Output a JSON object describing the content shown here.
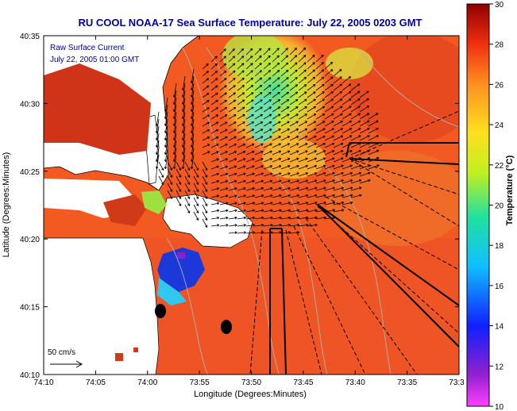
{
  "title": "RU COOL  NOAA-17  Sea Surface Temperature:  July 22, 2005 0203 GMT",
  "inset": {
    "line1": "Raw Surface Current",
    "line2": "July 22, 2005 01:00 GMT"
  },
  "scale_label": "50 cm/s",
  "xlabel": "Longitude (Degrees:Minutes)",
  "ylabel": "Latitude (Degrees:Minutes)",
  "x_ticks": [
    "74:10",
    "74:05",
    "74:00",
    "73:55",
    "73:50",
    "73:45",
    "73:40",
    "73:35",
    "73:3"
  ],
  "y_ticks": [
    "40:35",
    "40:30",
    "40:25",
    "40:20",
    "40:15",
    "40:10"
  ],
  "colorbar": {
    "label": "Temperature (°C)",
    "ticks": [
      "30",
      "28",
      "26",
      "24",
      "22",
      "20",
      "18",
      "16",
      "14",
      "12",
      "10"
    ],
    "range": [
      10,
      30
    ]
  },
  "colors": {
    "title_blue": "#0000a0",
    "ocean_warm": "#f05020",
    "ocean_mid": "#f57d2a",
    "land": "#ffffff",
    "cold_core": "#1436d6"
  },
  "markers": [
    "station-dot-1",
    "station-dot-2"
  ]
}
